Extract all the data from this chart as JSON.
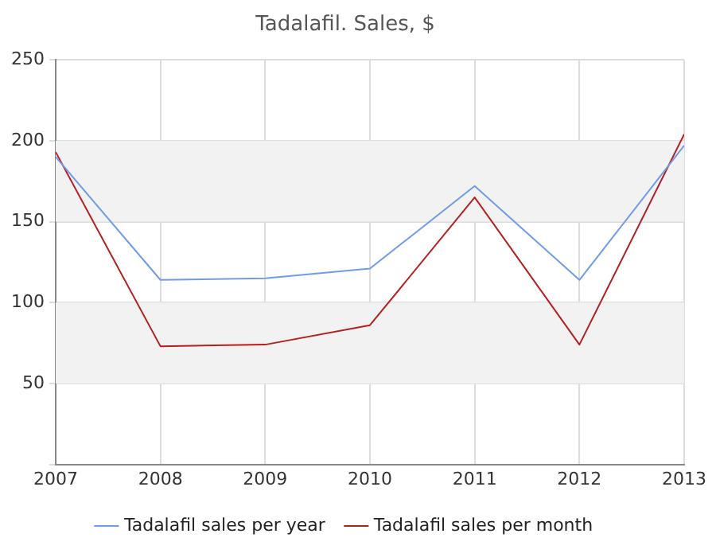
{
  "chart_data": {
    "type": "line",
    "title": "Tadalafil. Sales, $",
    "x": [
      2007,
      2008,
      2009,
      2010,
      2011,
      2012,
      2013
    ],
    "series": [
      {
        "name": "Tadalafil sales per year",
        "color": "#6f9be8",
        "values": [
          190,
          114,
          115,
          121,
          172,
          114,
          197
        ]
      },
      {
        "name": "Tadalafil sales per month",
        "color": "#b51f1f",
        "values": [
          193,
          73,
          74,
          86,
          165,
          74,
          204
        ]
      }
    ],
    "xlim": [
      2007,
      2013
    ],
    "xticks": [
      2007,
      2008,
      2009,
      2010,
      2011,
      2012,
      2013
    ],
    "ylim": [
      0,
      250
    ],
    "yticks": [
      {
        "value": 0,
        "label": null
      },
      50,
      100,
      150,
      200,
      250
    ],
    "bands": [
      {
        "axis": "y",
        "from": 50,
        "to": 100,
        "color": "#f2f2f2"
      },
      {
        "axis": "y",
        "from": 150,
        "to": 200,
        "color": "#f2f2f2"
      }
    ],
    "grid": true,
    "legend": "bottom",
    "marker": "none",
    "line_style": "solid"
  }
}
